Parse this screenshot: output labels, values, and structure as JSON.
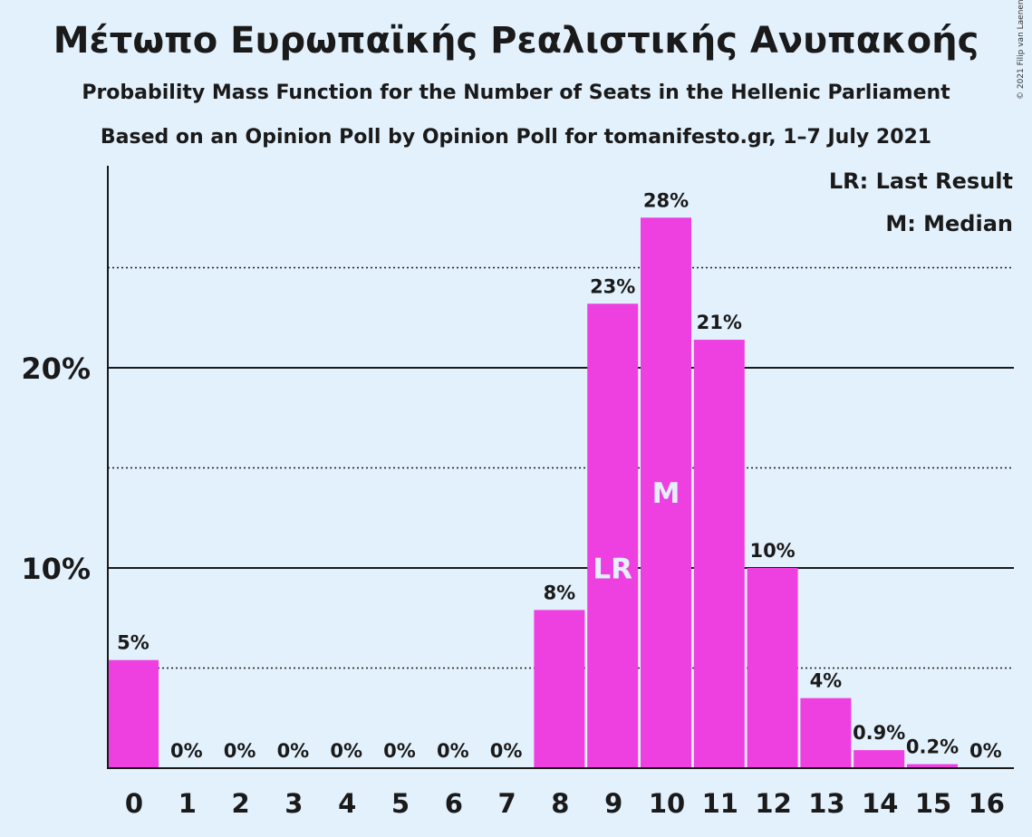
{
  "chart_data": {
    "type": "bar",
    "title": "Μέτωπο Ευρωπαϊκής Ρεαλιστικής Ανυπακοής",
    "subtitle": "Probability Mass Function for the Number of Seats in the Hellenic Parliament",
    "subtitle2": "Based on an Opinion Poll by Opinion Poll for tomanifesto.gr, 1–7 July 2021",
    "copyright": "© 2021 Filip van Laenen",
    "legend": [
      "LR: Last Result",
      "M: Median"
    ],
    "categories": [
      "0",
      "1",
      "2",
      "3",
      "4",
      "5",
      "6",
      "7",
      "8",
      "9",
      "10",
      "11",
      "12",
      "13",
      "14",
      "15",
      "16"
    ],
    "values": [
      5.4,
      0,
      0,
      0,
      0,
      0,
      0,
      0,
      7.9,
      23.2,
      27.5,
      21.4,
      10.0,
      3.5,
      0.9,
      0.2,
      0
    ],
    "data_labels": [
      "5%",
      "0%",
      "0%",
      "0%",
      "0%",
      "0%",
      "0%",
      "0%",
      "8%",
      "23%",
      "28%",
      "21%",
      "10%",
      "4%",
      "0.9%",
      "0.2%",
      "0%"
    ],
    "markers": [
      {
        "category": "9",
        "label": "LR"
      },
      {
        "category": "10",
        "label": "M"
      }
    ],
    "yticks": [
      {
        "value": 10,
        "label": "10%"
      },
      {
        "value": 20,
        "label": "20%"
      }
    ],
    "minor_gridlines": [
      5,
      15,
      25
    ],
    "ylim": [
      0,
      30
    ],
    "bar_color": "#ee3fe1",
    "background": "#e3f1fc"
  }
}
